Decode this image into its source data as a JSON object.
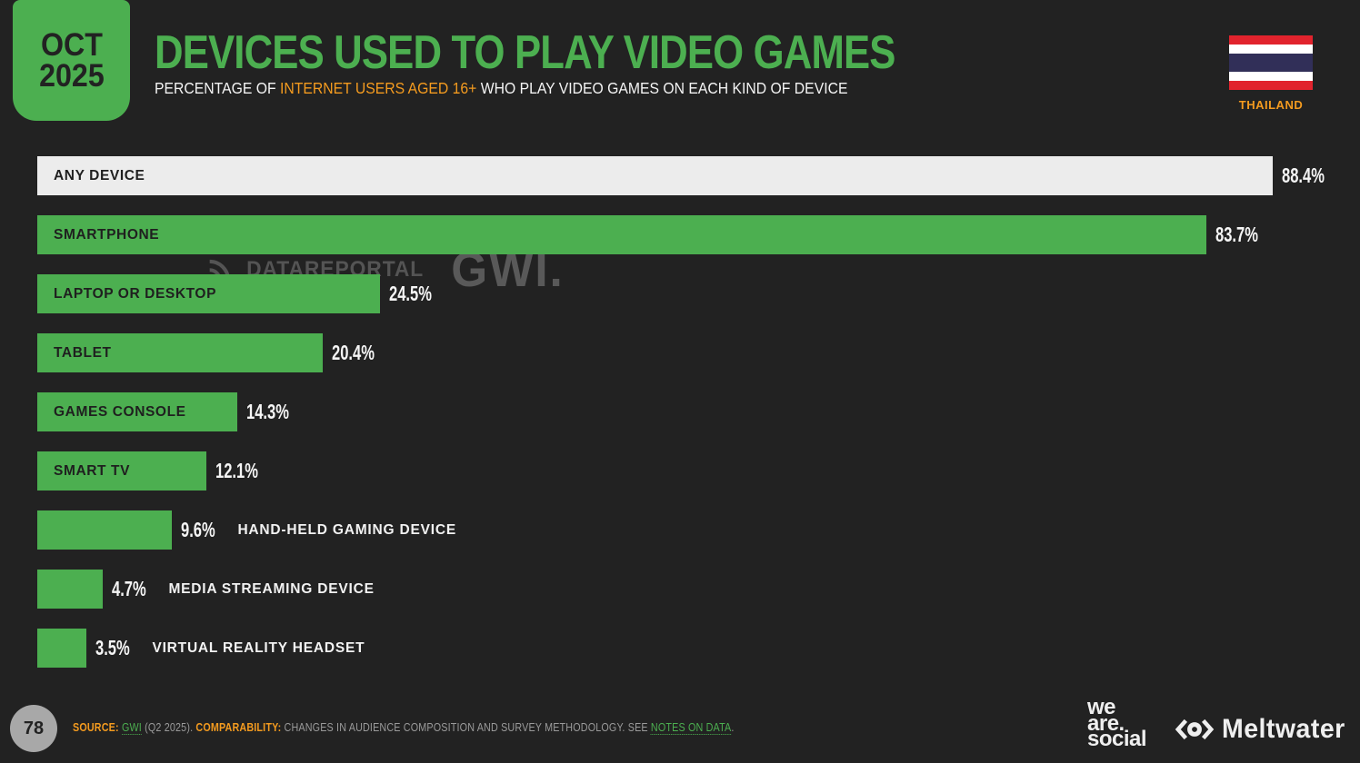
{
  "header": {
    "badge": {
      "month": "OCT",
      "year": "2025"
    },
    "title": "DEVICES USED TO PLAY VIDEO GAMES",
    "subtitle_prefix": "PERCENTAGE OF ",
    "subtitle_highlight": "INTERNET USERS AGED 16+",
    "subtitle_suffix": " WHO PLAY VIDEO GAMES ON EACH KIND OF DEVICE",
    "country": "THAILAND"
  },
  "watermark": {
    "brand": "DATAREPORTAL",
    "partner": "GWI."
  },
  "chart_data": {
    "type": "bar",
    "orientation": "horizontal",
    "title": "DEVICES USED TO PLAY VIDEO GAMES",
    "unit": "%",
    "xlim": [
      0,
      100
    ],
    "grid": false,
    "legend": "none",
    "categories": [
      "ANY DEVICE",
      "SMARTPHONE",
      "LAPTOP OR DESKTOP",
      "TABLET",
      "GAMES CONSOLE",
      "SMART TV",
      "HAND-HELD GAMING DEVICE",
      "MEDIA STREAMING DEVICE",
      "VIRTUAL REALITY HEADSET"
    ],
    "values": [
      88.4,
      83.7,
      24.5,
      20.4,
      14.3,
      12.1,
      9.6,
      4.7,
      3.5
    ],
    "bars": [
      {
        "label": "ANY DEVICE",
        "value": 88.4,
        "display": "88.4%",
        "color": "#ececec",
        "label_inside": true
      },
      {
        "label": "SMARTPHONE",
        "value": 83.7,
        "display": "83.7%",
        "color": "#4caf50",
        "label_inside": true
      },
      {
        "label": "LAPTOP OR DESKTOP",
        "value": 24.5,
        "display": "24.5%",
        "color": "#4caf50",
        "label_inside": true
      },
      {
        "label": "TABLET",
        "value": 20.4,
        "display": "20.4%",
        "color": "#4caf50",
        "label_inside": true
      },
      {
        "label": "GAMES CONSOLE",
        "value": 14.3,
        "display": "14.3%",
        "color": "#4caf50",
        "label_inside": true
      },
      {
        "label": "SMART TV",
        "value": 12.1,
        "display": "12.1%",
        "color": "#4caf50",
        "label_inside": true
      },
      {
        "label": "HAND-HELD GAMING DEVICE",
        "value": 9.6,
        "display": "9.6%",
        "color": "#4caf50",
        "label_inside": false
      },
      {
        "label": "MEDIA STREAMING DEVICE",
        "value": 4.7,
        "display": "4.7%",
        "color": "#4caf50",
        "label_inside": false
      },
      {
        "label": "VIRTUAL REALITY HEADSET",
        "value": 3.5,
        "display": "3.5%",
        "color": "#4caf50",
        "label_inside": false
      }
    ]
  },
  "footer": {
    "page_number": "78",
    "source_label": "SOURCE: ",
    "source_link": "GWI",
    "source_mid": " (Q2 2025). ",
    "comparability_label": "COMPARABILITY:",
    "comparability_text": " CHANGES IN AUDIENCE COMPOSITION AND SURVEY METHODOLOGY. SEE ",
    "notes_link": "NOTES ON DATA",
    "tail": ".",
    "we_are_social_lines": [
      "we",
      "are.",
      "social"
    ],
    "meltwater_label": "Meltwater"
  },
  "colors": {
    "background": "#222222",
    "green": "#4caf50",
    "orange": "#f49b1f",
    "light_bar": "#ececec",
    "footer_text": "#9a9a9a",
    "watermark": "#545454"
  }
}
